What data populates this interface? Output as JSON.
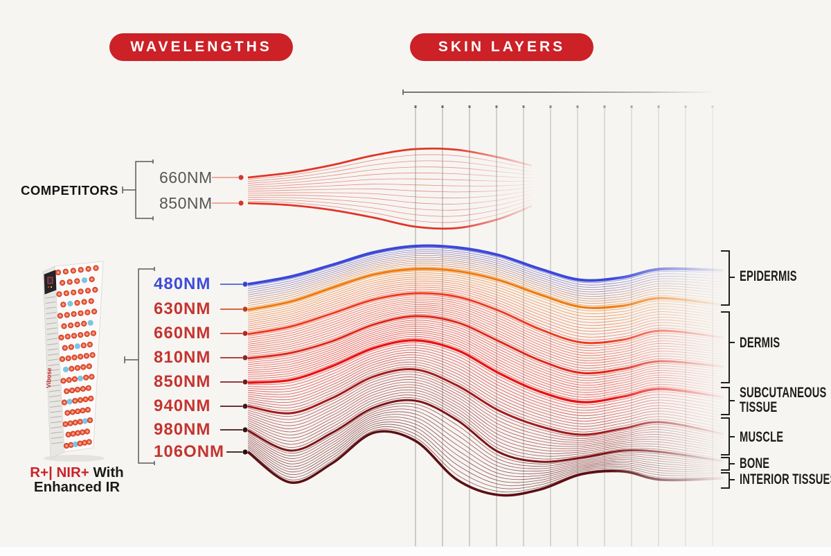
{
  "header": {
    "left_pill": "WAVELENGTHS",
    "right_pill": "SKIN LAYERS",
    "pill_color": "#cb2127"
  },
  "competitors": {
    "label": "COMPETITORS",
    "items": [
      {
        "label": "660NM"
      },
      {
        "label": "850NM"
      }
    ],
    "wave_color": "#e23427",
    "inner_wave_color": "#dd4434",
    "line_color": "#e8907e",
    "dot_color": "#d1382b",
    "text_color": "#565656"
  },
  "device": {
    "brand": "Vibose",
    "caption": {
      "highlight": "R+| NIR+",
      "suffix": " With",
      "line2": "Enhanced IR",
      "highlight_color": "#cb2127"
    }
  },
  "wavelengths": [
    {
      "label": "480NM",
      "text_color": "#3e4cd9",
      "wave_color": "#3b48d8",
      "line_color": "#4b62d8",
      "dot_color": "#3446c8"
    },
    {
      "label": "630NM",
      "text_color": "#c43430",
      "wave_color": "#f07c10",
      "line_color": "#d4502a",
      "dot_color": "#c03a22"
    },
    {
      "label": "660NM",
      "text_color": "#c43430",
      "wave_color": "#ee3a1f",
      "line_color": "#c93a2e",
      "dot_color": "#aa2d24"
    },
    {
      "label": "810NM",
      "text_color": "#c43430",
      "wave_color": "#e02417",
      "line_color": "#a52c28",
      "dot_color": "#8c2421"
    },
    {
      "label": "850NM",
      "text_color": "#c43430",
      "wave_color": "#ea1212",
      "line_color": "#7e2222",
      "dot_color": "#6d1d1d"
    },
    {
      "label": "940NM",
      "text_color": "#c43430",
      "wave_color": "#a31a1c",
      "line_color": "#521b1b",
      "dot_color": "#441616"
    },
    {
      "label": "980NM",
      "text_color": "#c43430",
      "wave_color": "#7c1518",
      "line_color": "#3f1515",
      "dot_color": "#331111"
    },
    {
      "label": "106ONM",
      "text_color": "#c43430",
      "wave_color": "#5c1014",
      "line_color": "#331111",
      "dot_color": "#2a0d0d"
    }
  ],
  "skin_layers": [
    {
      "label": "EPIDERMIS"
    },
    {
      "label": "DERMIS"
    },
    {
      "label": "SUBCUTANEOUS TISSUE"
    },
    {
      "label": "MUSCLE"
    },
    {
      "label": "BONE"
    },
    {
      "label": "INTERIOR TISSUES"
    }
  ]
}
